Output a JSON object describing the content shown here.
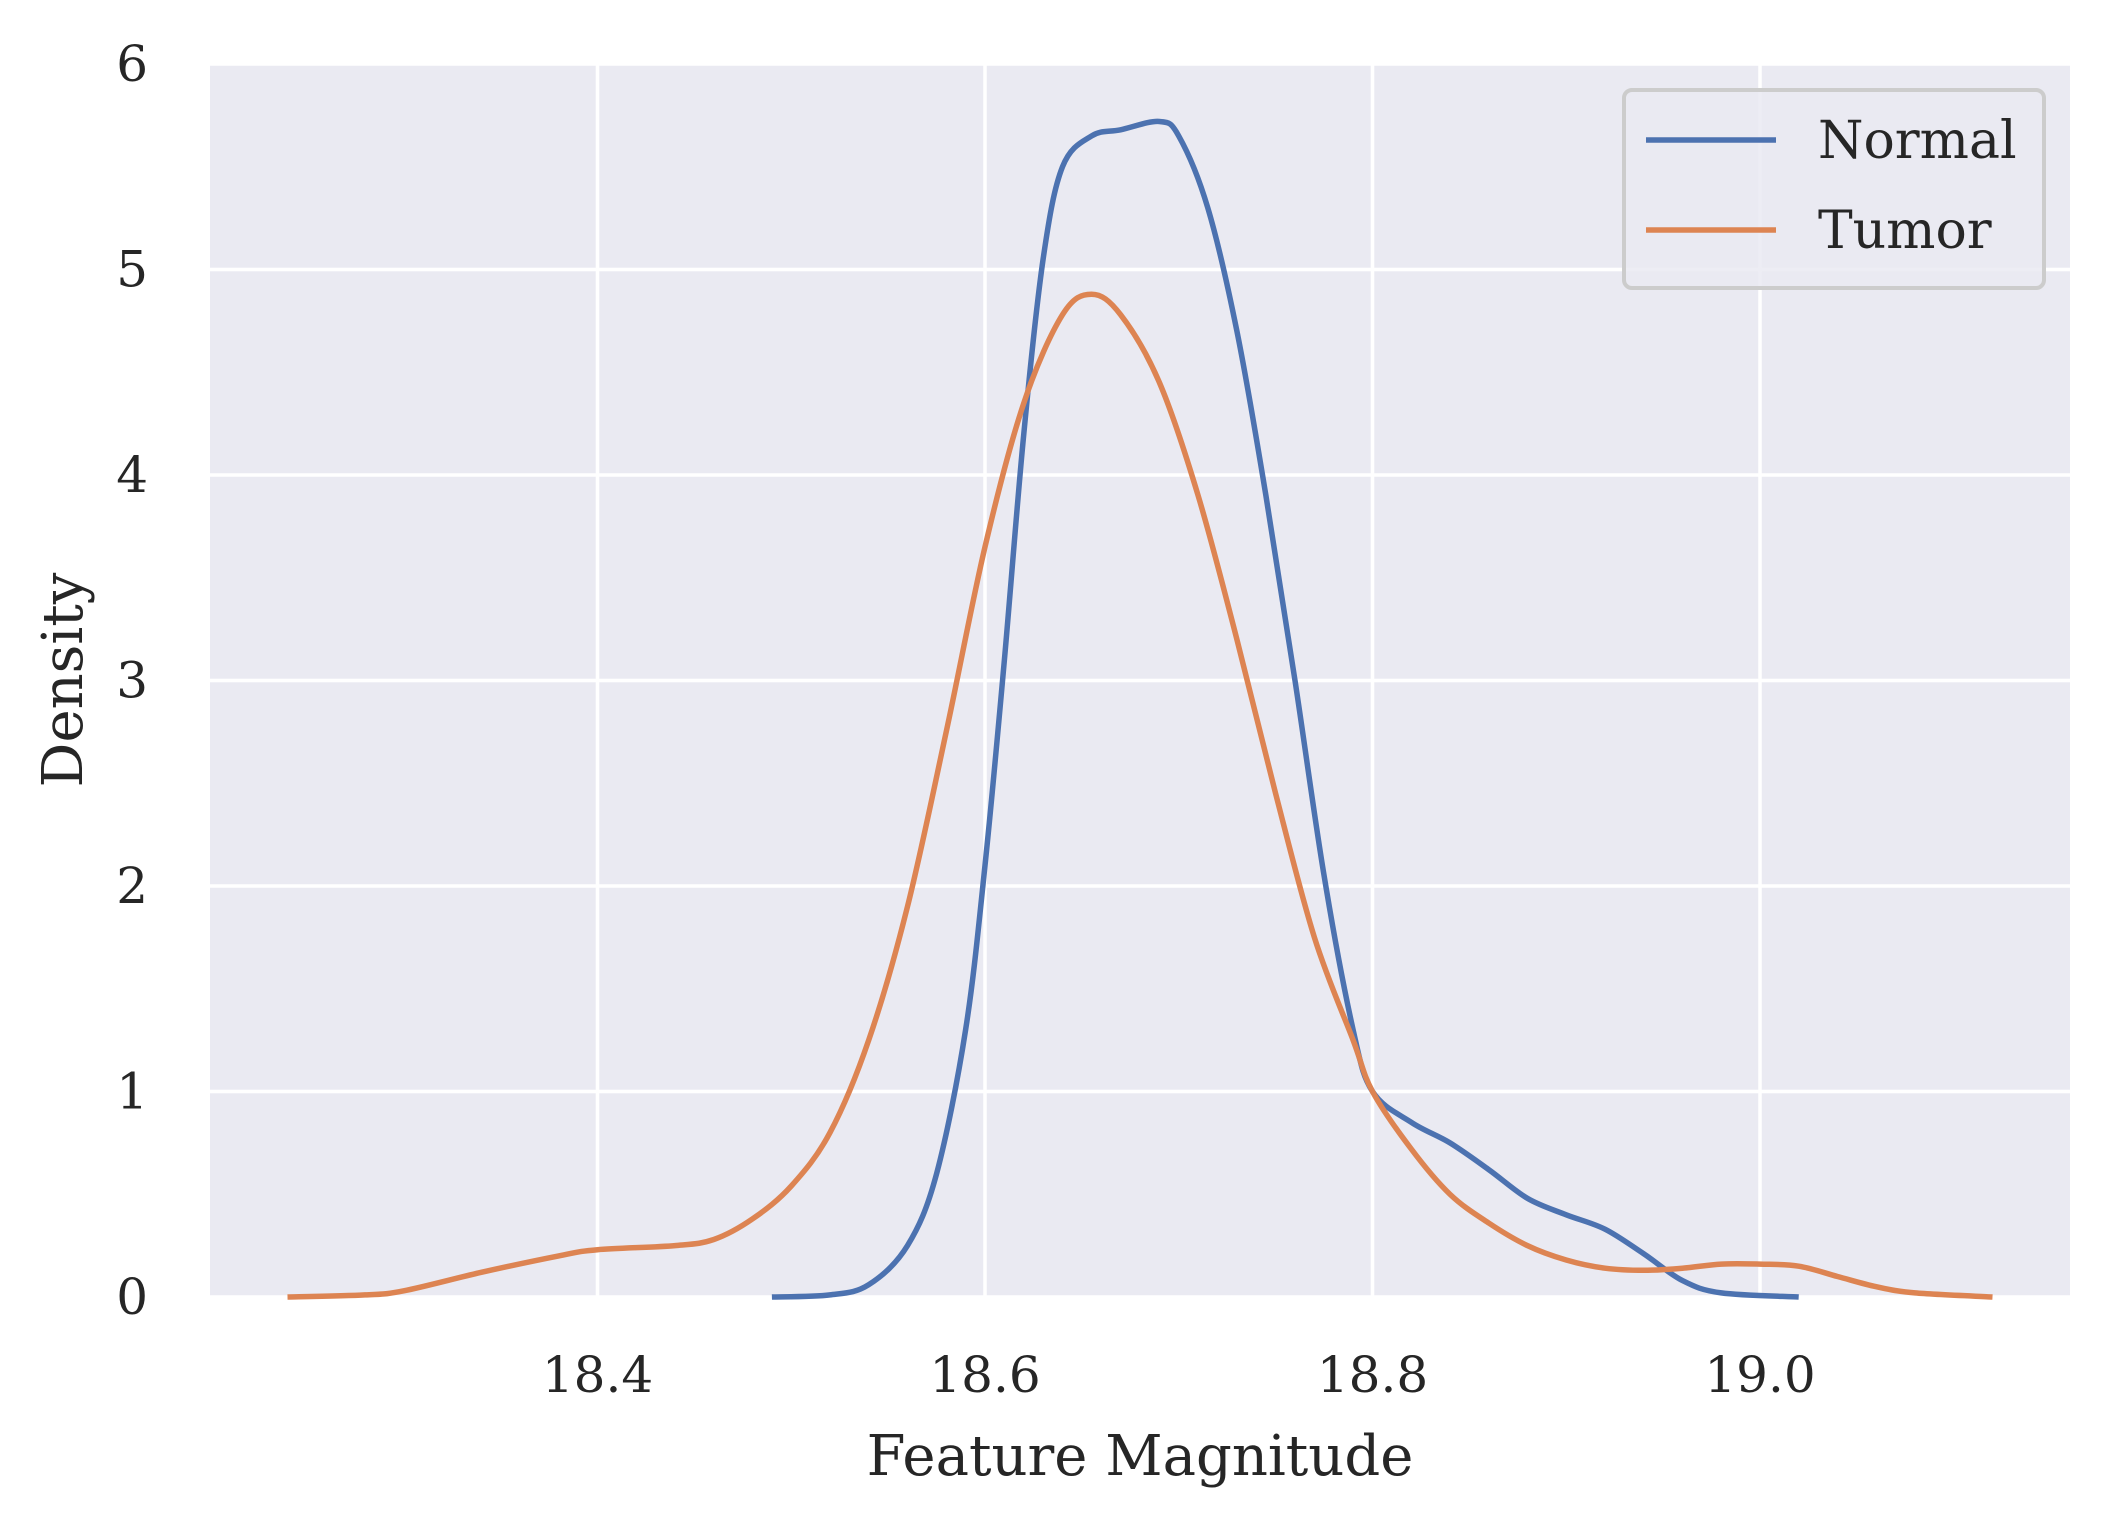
{
  "chart_data": {
    "type": "line",
    "title": "",
    "xlabel": "Feature Magnitude",
    "ylabel": "Density",
    "xlim": [
      18.2,
      19.16
    ],
    "ylim": [
      0,
      6
    ],
    "xticks": [
      18.4,
      18.6,
      18.8,
      19.0
    ],
    "xtick_labels": [
      "18.4",
      "18.6",
      "18.8",
      "19.0"
    ],
    "yticks": [
      0,
      1,
      2,
      3,
      4,
      5,
      6
    ],
    "ytick_labels": [
      "0",
      "1",
      "2",
      "3",
      "4",
      "5",
      "6"
    ],
    "grid": true,
    "legend_position": "top-right",
    "background": "#eaeaf2",
    "series": [
      {
        "name": "Normal",
        "color": "#4c72b0",
        "points": [
          [
            18.49,
            0.0
          ],
          [
            18.52,
            0.01
          ],
          [
            18.54,
            0.06
          ],
          [
            18.56,
            0.25
          ],
          [
            18.575,
            0.6
          ],
          [
            18.59,
            1.3
          ],
          [
            18.6,
            2.1
          ],
          [
            18.61,
            3.1
          ],
          [
            18.62,
            4.2
          ],
          [
            18.63,
            5.05
          ],
          [
            18.64,
            5.5
          ],
          [
            18.655,
            5.65
          ],
          [
            18.67,
            5.68
          ],
          [
            18.69,
            5.72
          ],
          [
            18.7,
            5.65
          ],
          [
            18.715,
            5.3
          ],
          [
            18.73,
            4.7
          ],
          [
            18.745,
            3.9
          ],
          [
            18.76,
            3.0
          ],
          [
            18.775,
            2.05
          ],
          [
            18.79,
            1.3
          ],
          [
            18.8,
            1.0
          ],
          [
            18.82,
            0.85
          ],
          [
            18.84,
            0.75
          ],
          [
            18.86,
            0.62
          ],
          [
            18.88,
            0.48
          ],
          [
            18.9,
            0.4
          ],
          [
            18.92,
            0.33
          ],
          [
            18.94,
            0.21
          ],
          [
            18.96,
            0.08
          ],
          [
            18.98,
            0.02
          ],
          [
            19.02,
            0.0
          ]
        ]
      },
      {
        "name": "Tumor",
        "color": "#dd8452",
        "points": [
          [
            18.24,
            0.0
          ],
          [
            18.28,
            0.01
          ],
          [
            18.3,
            0.03
          ],
          [
            18.34,
            0.12
          ],
          [
            18.38,
            0.2
          ],
          [
            18.4,
            0.23
          ],
          [
            18.44,
            0.25
          ],
          [
            18.46,
            0.28
          ],
          [
            18.48,
            0.38
          ],
          [
            18.5,
            0.54
          ],
          [
            18.52,
            0.8
          ],
          [
            18.54,
            1.25
          ],
          [
            18.56,
            1.9
          ],
          [
            18.58,
            2.75
          ],
          [
            18.6,
            3.65
          ],
          [
            18.62,
            4.35
          ],
          [
            18.64,
            4.78
          ],
          [
            18.655,
            4.88
          ],
          [
            18.67,
            4.78
          ],
          [
            18.69,
            4.45
          ],
          [
            18.71,
            3.9
          ],
          [
            18.73,
            3.2
          ],
          [
            18.75,
            2.45
          ],
          [
            18.77,
            1.75
          ],
          [
            18.79,
            1.25
          ],
          [
            18.8,
            1.0
          ],
          [
            18.82,
            0.72
          ],
          [
            18.84,
            0.5
          ],
          [
            18.86,
            0.36
          ],
          [
            18.88,
            0.25
          ],
          [
            18.9,
            0.18
          ],
          [
            18.92,
            0.14
          ],
          [
            18.94,
            0.13
          ],
          [
            18.96,
            0.14
          ],
          [
            18.98,
            0.16
          ],
          [
            19.0,
            0.16
          ],
          [
            19.02,
            0.15
          ],
          [
            19.04,
            0.1
          ],
          [
            19.06,
            0.05
          ],
          [
            19.08,
            0.02
          ],
          [
            19.12,
            0.0
          ]
        ]
      }
    ]
  }
}
